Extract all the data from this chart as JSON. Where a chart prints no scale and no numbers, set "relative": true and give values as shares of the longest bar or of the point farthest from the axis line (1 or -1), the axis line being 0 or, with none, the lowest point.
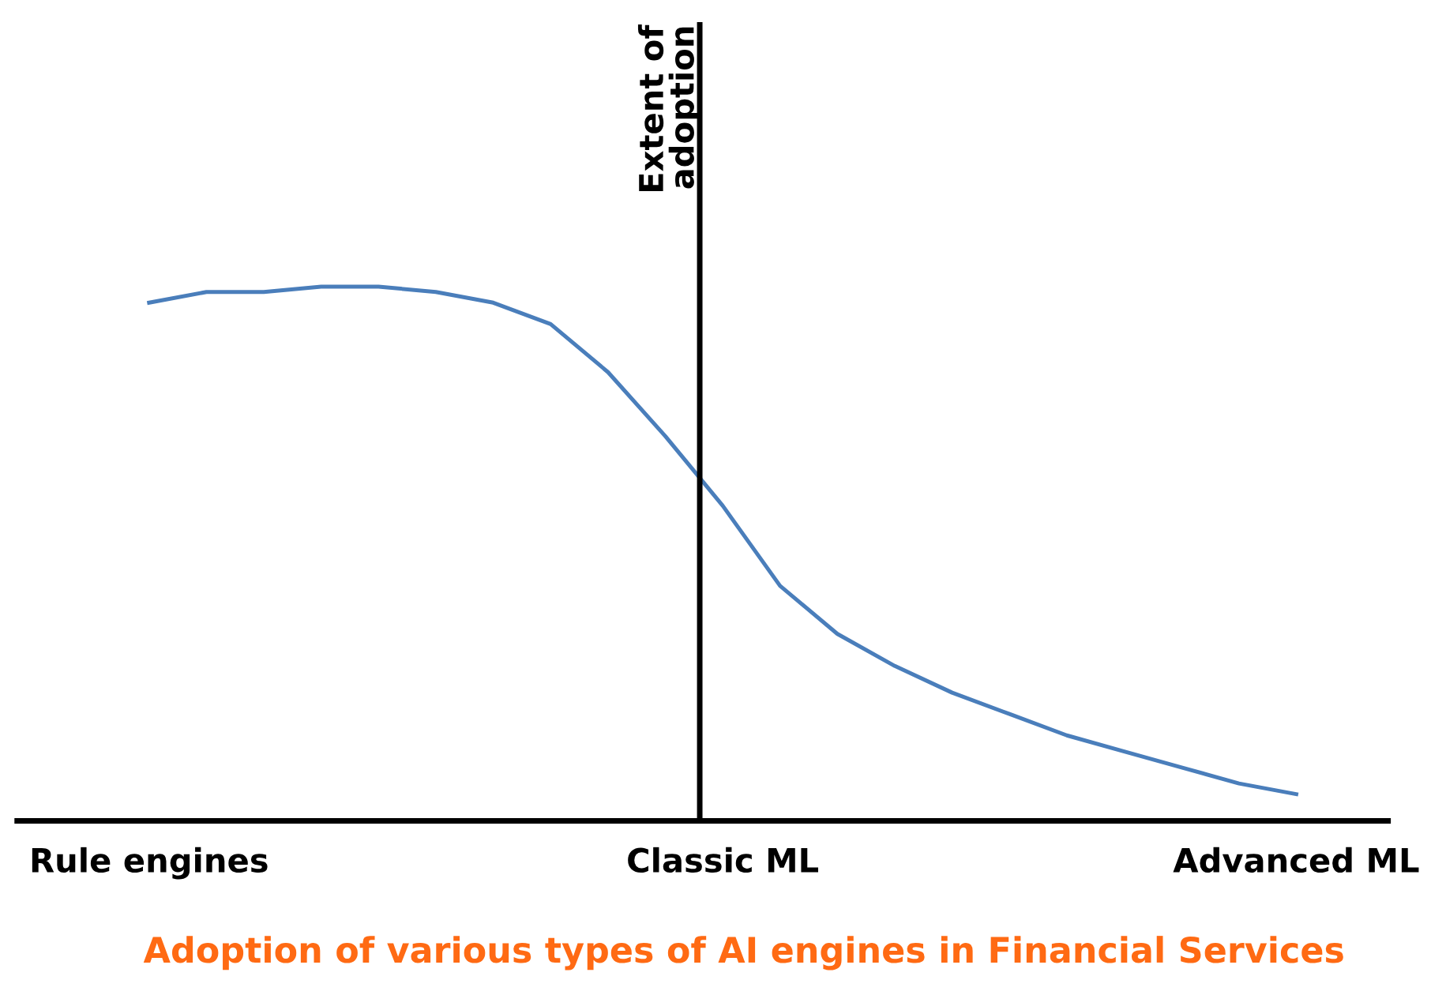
{
  "chart_data": {
    "type": "line",
    "relative": true,
    "title": "Adoption of various types of AI engines in Financial Services",
    "ylabel": "Extent of\nadoption",
    "categories": [
      "Rule engines",
      null,
      null,
      null,
      null,
      null,
      null,
      null,
      null,
      null,
      "Classic ML",
      null,
      null,
      null,
      null,
      null,
      null,
      null,
      null,
      null,
      "Advanced ML"
    ],
    "series": [
      {
        "color": "#4a7ebb",
        "values": [
          0.97,
          0.99,
          0.99,
          1,
          1,
          0.99,
          0.97,
          0.93,
          0.84,
          0.72,
          0.59,
          0.44,
          0.35,
          0.29,
          0.24,
          0.2,
          0.16,
          0.13,
          0.1,
          0.07,
          0.05
        ]
      }
    ],
    "grid": false,
    "legend": false,
    "marker": "none",
    "line_style": "solid"
  }
}
